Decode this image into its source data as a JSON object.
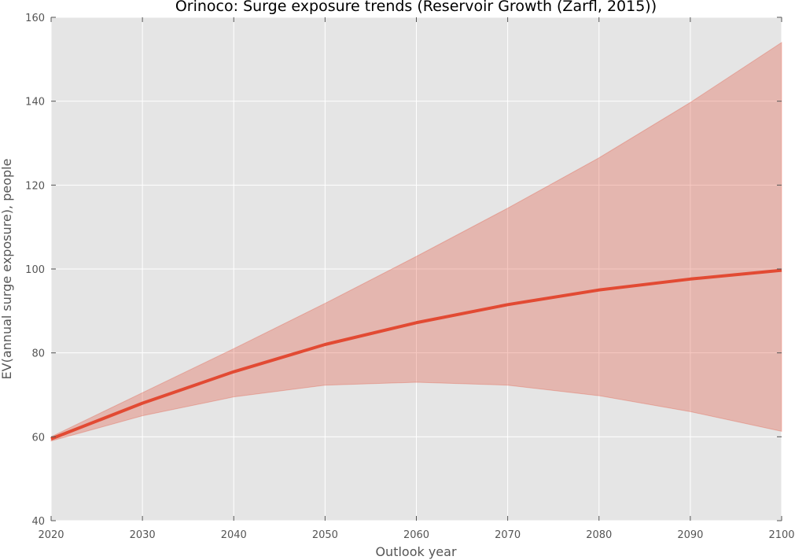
{
  "chart_data": {
    "type": "line",
    "title": "Orinoco: Surge exposure trends (Reservoir Growth (Zarfl, 2015))",
    "xlabel": "Outlook year",
    "ylabel": "EV(annual surge exposure), people",
    "xlim": [
      2020,
      2100
    ],
    "ylim": [
      40,
      160
    ],
    "x_ticks": [
      2020,
      2030,
      2040,
      2050,
      2060,
      2070,
      2080,
      2090,
      2100
    ],
    "y_ticks": [
      40,
      60,
      80,
      100,
      120,
      140,
      160
    ],
    "grid": true,
    "legend": "none",
    "x": [
      2020,
      2030,
      2040,
      2050,
      2060,
      2070,
      2080,
      2090,
      2100
    ],
    "series": [
      {
        "values": [
          59.5,
          68.0,
          75.5,
          82.0,
          87.2,
          91.5,
          95.0,
          97.6,
          99.7
        ],
        "lower": [
          59.0,
          65.0,
          69.5,
          72.3,
          73.0,
          72.3,
          69.8,
          66.0,
          61.3
        ],
        "upper": [
          60.0,
          70.5,
          81.0,
          91.8,
          103.0,
          114.5,
          126.5,
          139.7,
          154.0
        ],
        "color": "#E24A33",
        "band_color": "#E24A33"
      }
    ],
    "colors": {
      "plot_background": "#E5E5E5",
      "grid": "#FFFFFF",
      "line": "#E24A33",
      "band": "#E24A33"
    }
  }
}
